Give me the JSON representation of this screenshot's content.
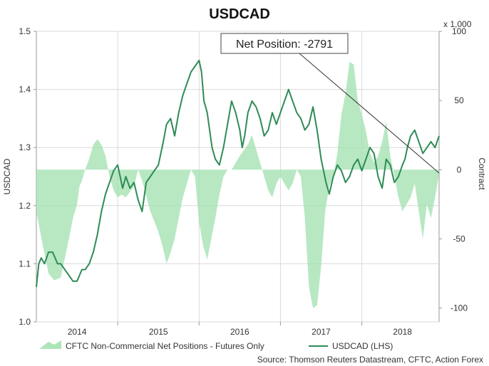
{
  "chart_data": {
    "type": "area",
    "title": "USDCAD",
    "left_axis": {
      "label": "USDCAD",
      "min": 1.0,
      "max": 1.5,
      "ticks": [
        "1.0",
        "1.1",
        "1.2",
        "1.3",
        "1.4",
        "1.5"
      ]
    },
    "right_axis": {
      "label": "Contract",
      "unit": "x 1,000",
      "min": -110,
      "max": 100,
      "ticks": [
        "100",
        "50",
        "0",
        "-50",
        "-100"
      ]
    },
    "x_axis": {
      "min": 2013.5,
      "max": 2018.45,
      "ticks": [
        {
          "label": "2014",
          "pos": 2014.0
        },
        {
          "label": "2015",
          "pos": 2015.0
        },
        {
          "label": "2016",
          "pos": 2016.0
        },
        {
          "label": "2017",
          "pos": 2017.0
        },
        {
          "label": "2018",
          "pos": 2018.0
        }
      ]
    },
    "grid": true,
    "legend_position": "bottom",
    "annotation": {
      "text": "Net Position: -2791",
      "value": -2.791
    },
    "source": "Source: Thomson Reuters Datastream, CFTC, Action Forex",
    "series": [
      {
        "name": "CFTC Non-Commercial Net Positions - Futures Only",
        "axis": "right",
        "color": "#9fe0ad",
        "x": [
          2013.5,
          2013.58,
          2013.65,
          2013.72,
          2013.8,
          2013.9,
          2013.95,
          2014.0,
          2014.03,
          2014.06,
          2014.1,
          2014.15,
          2014.2,
          2014.25,
          2014.3,
          2014.35,
          2014.4,
          2014.45,
          2014.5,
          2014.55,
          2014.6,
          2014.7,
          2014.75,
          2014.8,
          2014.9,
          2015.0,
          2015.05,
          2015.1,
          2015.15,
          2015.2,
          2015.25,
          2015.3,
          2015.35,
          2015.4,
          2015.45,
          2015.5,
          2015.55,
          2015.6,
          2015.65,
          2015.7,
          2015.75,
          2015.8,
          2015.85,
          2015.9,
          2015.95,
          2016.0,
          2016.1,
          2016.15,
          2016.2,
          2016.25,
          2016.3,
          2016.35,
          2016.4,
          2016.45,
          2016.5,
          2016.55,
          2016.6,
          2016.65,
          2016.7,
          2016.75,
          2016.8,
          2016.85,
          2016.9,
          2016.95,
          2017.0,
          2017.05,
          2017.1,
          2017.15,
          2017.2,
          2017.25,
          2017.3,
          2017.35,
          2017.4,
          2017.45,
          2017.5,
          2017.55,
          2017.6,
          2017.65,
          2017.7,
          2017.75,
          2017.8,
          2017.85,
          2017.9,
          2017.95,
          2018.0,
          2018.05,
          2018.1,
          2018.15,
          2018.2,
          2018.25,
          2018.3,
          2018.35,
          2018.4,
          2018.45
        ],
        "values": [
          -30,
          -55,
          -75,
          -80,
          -78,
          -50,
          -35,
          -25,
          -12,
          -8,
          0,
          8,
          18,
          22,
          18,
          10,
          -5,
          -15,
          -20,
          -18,
          -20,
          -12,
          0,
          -8,
          -30,
          -45,
          -55,
          -68,
          -60,
          -50,
          -35,
          -20,
          -10,
          0,
          -5,
          -38,
          -55,
          -65,
          -50,
          -35,
          -18,
          -5,
          0,
          0,
          5,
          10,
          18,
          25,
          15,
          5,
          -5,
          -15,
          -20,
          -10,
          -5,
          -10,
          -15,
          -10,
          0,
          -5,
          -35,
          -85,
          -100,
          -98,
          -70,
          -30,
          -12,
          -5,
          12,
          40,
          55,
          78,
          76,
          50,
          40,
          28,
          12,
          5,
          10,
          20,
          35,
          10,
          -5,
          -20,
          -30,
          -25,
          -20,
          -10,
          -30,
          -50,
          -25,
          -35,
          -20,
          -3
        ]
      },
      {
        "name": "USDCAD (LHS)",
        "axis": "left",
        "color": "#2e8b57",
        "x": [
          2013.5,
          2013.53,
          2013.56,
          2013.6,
          2013.65,
          2013.7,
          2013.73,
          2013.76,
          2013.8,
          2013.85,
          2013.9,
          2013.95,
          2014.0,
          2014.03,
          2014.06,
          2014.1,
          2014.15,
          2014.2,
          2014.25,
          2014.3,
          2014.35,
          2014.4,
          2014.45,
          2014.5,
          2014.53,
          2014.56,
          2014.6,
          2014.65,
          2014.7,
          2014.75,
          2014.8,
          2014.85,
          2014.9,
          2014.95,
          2015.0,
          2015.03,
          2015.06,
          2015.1,
          2015.15,
          2015.2,
          2015.25,
          2015.3,
          2015.35,
          2015.4,
          2015.45,
          2015.5,
          2015.53,
          2015.56,
          2015.6,
          2015.63,
          2015.66,
          2015.7,
          2015.75,
          2015.8,
          2015.85,
          2015.9,
          2015.95,
          2016.0,
          2016.03,
          2016.06,
          2016.1,
          2016.15,
          2016.2,
          2016.25,
          2016.3,
          2016.35,
          2016.4,
          2016.45,
          2016.5,
          2016.55,
          2016.6,
          2016.65,
          2016.7,
          2016.75,
          2016.8,
          2016.85,
          2016.9,
          2016.95,
          2017.0,
          2017.03,
          2017.06,
          2017.1,
          2017.15,
          2017.2,
          2017.25,
          2017.3,
          2017.35,
          2017.4,
          2017.45,
          2017.5,
          2017.55,
          2017.6,
          2017.65,
          2017.7,
          2017.75,
          2017.8,
          2017.85,
          2017.9,
          2017.95,
          2018.0,
          2018.03,
          2018.06,
          2018.1,
          2018.15,
          2018.2,
          2018.25,
          2018.3,
          2018.35,
          2018.4,
          2018.45
        ],
        "values": [
          1.06,
          1.1,
          1.11,
          1.1,
          1.12,
          1.12,
          1.11,
          1.1,
          1.1,
          1.09,
          1.08,
          1.07,
          1.07,
          1.08,
          1.09,
          1.09,
          1.1,
          1.12,
          1.15,
          1.19,
          1.22,
          1.24,
          1.26,
          1.27,
          1.25,
          1.23,
          1.25,
          1.23,
          1.24,
          1.21,
          1.19,
          1.24,
          1.25,
          1.26,
          1.27,
          1.29,
          1.31,
          1.34,
          1.35,
          1.32,
          1.36,
          1.39,
          1.41,
          1.43,
          1.44,
          1.45,
          1.43,
          1.38,
          1.36,
          1.33,
          1.3,
          1.28,
          1.27,
          1.3,
          1.34,
          1.38,
          1.36,
          1.33,
          1.3,
          1.32,
          1.36,
          1.38,
          1.37,
          1.35,
          1.32,
          1.33,
          1.36,
          1.34,
          1.36,
          1.38,
          1.4,
          1.38,
          1.36,
          1.35,
          1.33,
          1.34,
          1.37,
          1.33,
          1.28,
          1.26,
          1.24,
          1.22,
          1.25,
          1.27,
          1.26,
          1.24,
          1.25,
          1.27,
          1.28,
          1.26,
          1.28,
          1.3,
          1.29,
          1.25,
          1.23,
          1.28,
          1.27,
          1.24,
          1.25,
          1.27,
          1.28,
          1.3,
          1.32,
          1.33,
          1.31,
          1.29,
          1.3,
          1.31,
          1.3,
          1.32
        ]
      }
    ]
  }
}
